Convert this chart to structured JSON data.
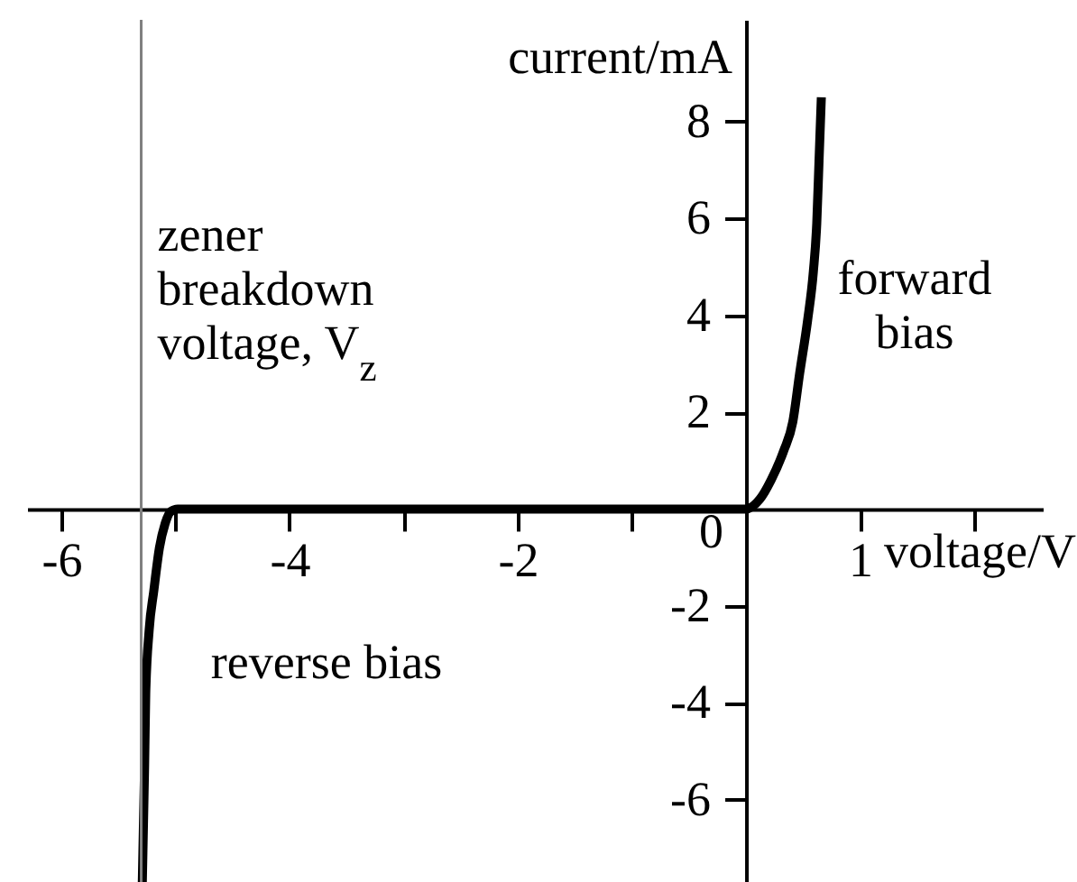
{
  "chart_data": {
    "type": "line",
    "xlabel": "voltage/V",
    "ylabel": "current/mA",
    "xlim": [
      -6.3,
      2.6
    ],
    "ylim": [
      -7.7,
      10.1
    ],
    "xticks": [
      -6,
      {
        "value": -5,
        "label": null
      },
      -4,
      {
        "value": -3,
        "label": null
      },
      -2,
      {
        "value": -1,
        "label": null
      },
      1,
      {
        "value": 2,
        "label": null
      }
    ],
    "yticks": [
      -6,
      -4,
      -2,
      0,
      2,
      4,
      6,
      8
    ],
    "series": [
      {
        "color": "#000000",
        "x": [
          -5.29,
          -5.28,
          -5.27,
          -5.26,
          -5.23,
          -5.19,
          -5.14,
          -5.09,
          -5.04,
          -4.98,
          0,
          0.12,
          0.22,
          0.33,
          0.41,
          0.47,
          0.54,
          0.59,
          0.62,
          0.64,
          0.66
        ],
        "values": [
          -7.7,
          -6.5,
          -5.3,
          -3.8,
          -2.5,
          -1.7,
          -0.8,
          -0.3,
          -0.05,
          0,
          0,
          0.2,
          0.6,
          1.2,
          1.8,
          2.8,
          3.9,
          4.9,
          5.9,
          7.2,
          8.5
        ]
      }
    ],
    "ref_lines": [
      {
        "axis": "x",
        "value": -5.3,
        "label": "zener\nbreakdown\nvoltage, V$_{z}$",
        "color": "#808080"
      }
    ],
    "annotations": [
      "forward\nbias",
      "reverse bias"
    ]
  }
}
